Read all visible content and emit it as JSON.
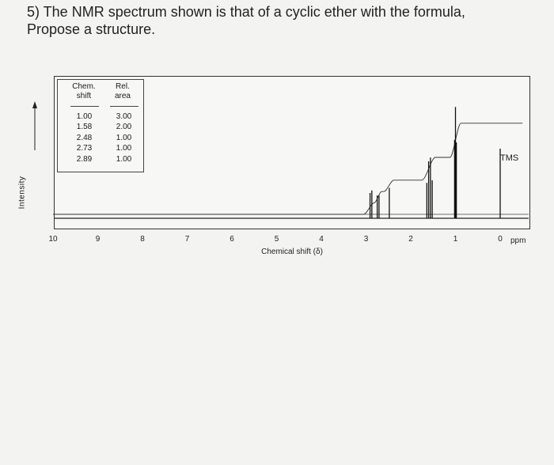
{
  "question": {
    "line1": "5) The NMR spectrum shown is that of a cyclic ether with the formula,",
    "line2": "Propose a structure."
  },
  "table": {
    "header_col1_line1": "Chem.",
    "header_col1_line2": "shift",
    "header_col2_line1": "Rel.",
    "header_col2_line2": "area",
    "rows": [
      {
        "shift": "1.00",
        "area": "3.00"
      },
      {
        "shift": "1.58",
        "area": "2.00"
      },
      {
        "shift": "2.48",
        "area": "1.00"
      },
      {
        "shift": "2.73",
        "area": "1.00"
      },
      {
        "shift": "2.89",
        "area": "1.00"
      }
    ]
  },
  "chart_data": {
    "type": "line",
    "title": "",
    "xlabel": "Chemical shift (δ)",
    "ylabel": "Intensity",
    "x_unit_label": "ppm",
    "xlim": [
      10,
      0
    ],
    "x_ticks": [
      "10",
      "9",
      "8",
      "7",
      "6",
      "5",
      "4",
      "3",
      "2",
      "1",
      "0"
    ],
    "reference_label": "TMS",
    "peaks": [
      {
        "shift": 0.0,
        "height": 0.55,
        "label": "TMS"
      },
      {
        "shift": 0.98,
        "height": 0.6
      },
      {
        "shift": 1.0,
        "height": 0.88
      },
      {
        "shift": 1.02,
        "height": 0.62
      },
      {
        "shift": 1.52,
        "height": 0.3
      },
      {
        "shift": 1.56,
        "height": 0.48
      },
      {
        "shift": 1.6,
        "height": 0.45
      },
      {
        "shift": 1.64,
        "height": 0.28
      },
      {
        "shift": 2.48,
        "height": 0.24
      },
      {
        "shift": 2.71,
        "height": 0.18
      },
      {
        "shift": 2.75,
        "height": 0.18
      },
      {
        "shift": 2.87,
        "height": 0.22
      },
      {
        "shift": 2.91,
        "height": 0.2
      }
    ],
    "integral_steps": [
      {
        "from": 3.05,
        "to": 2.82,
        "rise": 0.1
      },
      {
        "from": 2.82,
        "to": 2.65,
        "rise": 0.1
      },
      {
        "from": 2.6,
        "to": 2.38,
        "rise": 0.1
      },
      {
        "from": 1.75,
        "to": 1.45,
        "rise": 0.2
      },
      {
        "from": 1.12,
        "to": 0.88,
        "rise": 0.3
      }
    ]
  }
}
